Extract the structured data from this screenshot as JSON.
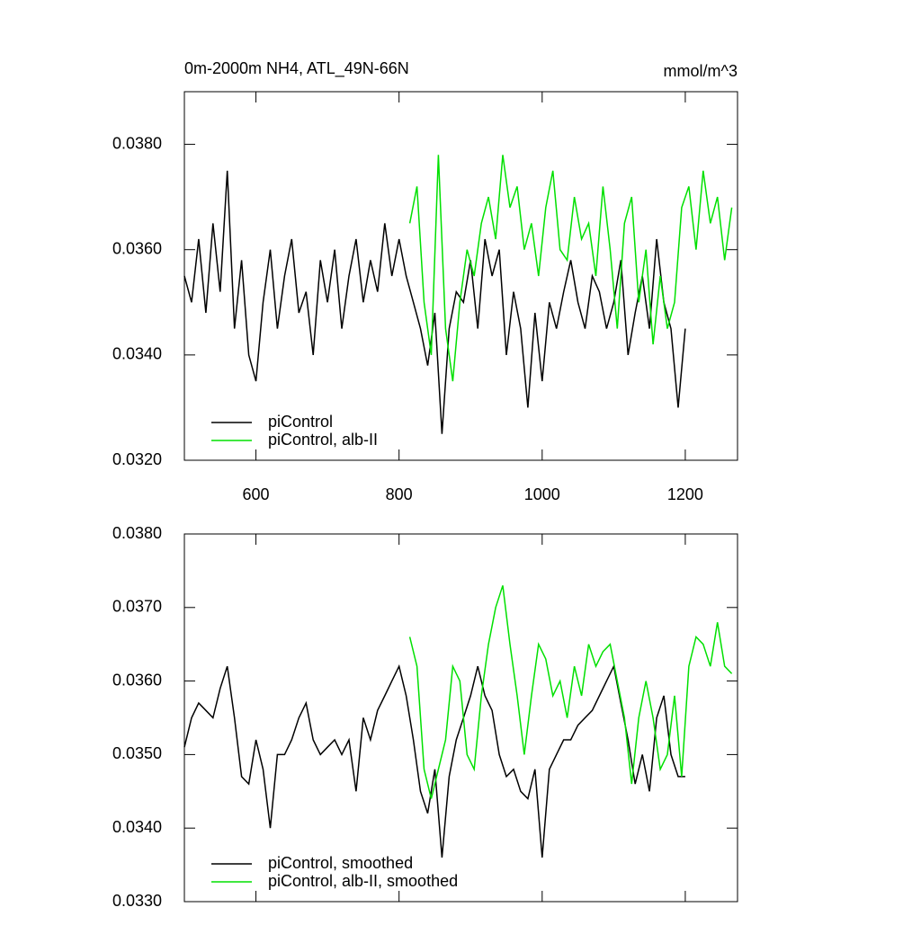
{
  "chart_data": [
    {
      "type": "line",
      "title": "0m-2000m NH4, ATL_49N-66N",
      "units": "mmol/m^3",
      "xlim": [
        500,
        1273
      ],
      "ylim": [
        0.032,
        0.039
      ],
      "xticks": [
        600,
        800,
        1000,
        1200
      ],
      "xtick_labels": true,
      "yticks": [
        {
          "value": 0.032,
          "label": "0.0320"
        },
        {
          "value": 0.034,
          "label": "0.0340"
        },
        {
          "value": 0.036,
          "label": "0.0360"
        },
        {
          "value": 0.038,
          "label": "0.0380"
        }
      ],
      "series": [
        {
          "name": "piControl",
          "color": "#000000",
          "x": [
            500,
            510,
            520,
            530,
            540,
            550,
            560,
            570,
            580,
            590,
            600,
            610,
            620,
            630,
            640,
            650,
            660,
            670,
            680,
            690,
            700,
            710,
            720,
            730,
            740,
            750,
            760,
            770,
            780,
            790,
            800,
            810,
            820,
            830,
            840,
            850,
            860,
            870,
            880,
            890,
            900,
            910,
            920,
            930,
            940,
            950,
            960,
            970,
            980,
            990,
            1000,
            1010,
            1020,
            1030,
            1040,
            1050,
            1060,
            1070,
            1080,
            1090,
            1100,
            1110,
            1120,
            1130,
            1140,
            1150,
            1160,
            1170,
            1180,
            1190,
            1200
          ],
          "values": [
            0.0355,
            0.035,
            0.0362,
            0.0348,
            0.0365,
            0.0352,
            0.0375,
            0.0345,
            0.0358,
            0.034,
            0.0335,
            0.035,
            0.036,
            0.0345,
            0.0355,
            0.0362,
            0.0348,
            0.0352,
            0.034,
            0.0358,
            0.035,
            0.036,
            0.0345,
            0.0355,
            0.0362,
            0.035,
            0.0358,
            0.0352,
            0.0365,
            0.0355,
            0.0362,
            0.0355,
            0.035,
            0.0345,
            0.0338,
            0.0348,
            0.0325,
            0.0345,
            0.0352,
            0.035,
            0.0358,
            0.0345,
            0.0362,
            0.0355,
            0.036,
            0.034,
            0.0352,
            0.0345,
            0.033,
            0.0348,
            0.0335,
            0.035,
            0.0345,
            0.0352,
            0.0358,
            0.035,
            0.0345,
            0.0355,
            0.0352,
            0.0345,
            0.035,
            0.0358,
            0.034,
            0.0348,
            0.0355,
            0.0345,
            0.0362,
            0.035,
            0.0345,
            0.033,
            0.0345
          ]
        },
        {
          "name": "piControl, alb-II",
          "color": "#00e000",
          "x": [
            815,
            825,
            835,
            845,
            855,
            865,
            875,
            885,
            895,
            905,
            915,
            925,
            935,
            945,
            955,
            965,
            975,
            985,
            995,
            1005,
            1015,
            1025,
            1035,
            1045,
            1055,
            1065,
            1075,
            1085,
            1095,
            1105,
            1115,
            1125,
            1135,
            1145,
            1155,
            1165,
            1175,
            1185,
            1195,
            1205,
            1215,
            1225,
            1235,
            1245,
            1255,
            1265
          ],
          "values": [
            0.0365,
            0.0372,
            0.035,
            0.034,
            0.0378,
            0.0345,
            0.0335,
            0.035,
            0.036,
            0.0355,
            0.0365,
            0.037,
            0.0362,
            0.0378,
            0.0368,
            0.0372,
            0.036,
            0.0365,
            0.0355,
            0.0368,
            0.0375,
            0.036,
            0.0358,
            0.037,
            0.0362,
            0.0365,
            0.0355,
            0.0372,
            0.036,
            0.0345,
            0.0365,
            0.037,
            0.035,
            0.036,
            0.0342,
            0.0355,
            0.0345,
            0.035,
            0.0368,
            0.0372,
            0.036,
            0.0375,
            0.0365,
            0.037,
            0.0358,
            0.0368
          ]
        }
      ]
    },
    {
      "type": "line",
      "xlim": [
        500,
        1273
      ],
      "ylim": [
        0.033,
        0.038
      ],
      "xticks": [
        600,
        800,
        1000,
        1200
      ],
      "xtick_labels": false,
      "yticks": [
        {
          "value": 0.033,
          "label": "0.0330"
        },
        {
          "value": 0.034,
          "label": "0.0340"
        },
        {
          "value": 0.035,
          "label": "0.0350"
        },
        {
          "value": 0.036,
          "label": "0.0360"
        },
        {
          "value": 0.037,
          "label": "0.0370"
        },
        {
          "value": 0.038,
          "label": "0.0380"
        }
      ],
      "series": [
        {
          "name": "piControl, smoothed",
          "color": "#000000",
          "x": [
            500,
            510,
            520,
            530,
            540,
            550,
            560,
            570,
            580,
            590,
            600,
            610,
            620,
            630,
            640,
            650,
            660,
            670,
            680,
            690,
            700,
            710,
            720,
            730,
            740,
            750,
            760,
            770,
            780,
            790,
            800,
            810,
            820,
            830,
            840,
            850,
            860,
            870,
            880,
            890,
            900,
            910,
            920,
            930,
            940,
            950,
            960,
            970,
            980,
            990,
            1000,
            1010,
            1020,
            1030,
            1040,
            1050,
            1060,
            1070,
            1080,
            1090,
            1100,
            1110,
            1120,
            1130,
            1140,
            1150,
            1160,
            1170,
            1180,
            1190,
            1200
          ],
          "values": [
            0.0351,
            0.0355,
            0.0357,
            0.0356,
            0.0355,
            0.0359,
            0.0362,
            0.0355,
            0.0347,
            0.0346,
            0.0352,
            0.0348,
            0.034,
            0.035,
            0.035,
            0.0352,
            0.0355,
            0.0357,
            0.0352,
            0.035,
            0.0351,
            0.0352,
            0.035,
            0.0352,
            0.0345,
            0.0355,
            0.0352,
            0.0356,
            0.0358,
            0.036,
            0.0362,
            0.0358,
            0.0352,
            0.0345,
            0.0342,
            0.0348,
            0.0336,
            0.0347,
            0.0352,
            0.0355,
            0.0358,
            0.0362,
            0.0358,
            0.0356,
            0.035,
            0.0347,
            0.0348,
            0.0345,
            0.0344,
            0.0348,
            0.0336,
            0.0348,
            0.035,
            0.0352,
            0.0352,
            0.0354,
            0.0355,
            0.0356,
            0.0358,
            0.036,
            0.0362,
            0.0357,
            0.0352,
            0.0346,
            0.035,
            0.0345,
            0.0355,
            0.0358,
            0.035,
            0.0347,
            0.0347
          ]
        },
        {
          "name": "piControl, alb-II, smoothed",
          "color": "#00e000",
          "x": [
            815,
            825,
            835,
            845,
            855,
            865,
            875,
            885,
            895,
            905,
            915,
            925,
            935,
            945,
            955,
            965,
            975,
            985,
            995,
            1005,
            1015,
            1025,
            1035,
            1045,
            1055,
            1065,
            1075,
            1085,
            1095,
            1105,
            1115,
            1125,
            1135,
            1145,
            1155,
            1165,
            1175,
            1185,
            1195,
            1205,
            1215,
            1225,
            1235,
            1245,
            1255,
            1265
          ],
          "values": [
            0.0366,
            0.0362,
            0.0348,
            0.0344,
            0.0348,
            0.0352,
            0.0362,
            0.036,
            0.035,
            0.0348,
            0.0358,
            0.0365,
            0.037,
            0.0373,
            0.0365,
            0.0358,
            0.035,
            0.0358,
            0.0365,
            0.0363,
            0.0358,
            0.036,
            0.0355,
            0.0362,
            0.0358,
            0.0365,
            0.0362,
            0.0364,
            0.0365,
            0.036,
            0.0355,
            0.0346,
            0.0355,
            0.036,
            0.0355,
            0.0348,
            0.035,
            0.0358,
            0.0347,
            0.0362,
            0.0366,
            0.0365,
            0.0362,
            0.0368,
            0.0362,
            0.0361
          ]
        }
      ]
    }
  ]
}
